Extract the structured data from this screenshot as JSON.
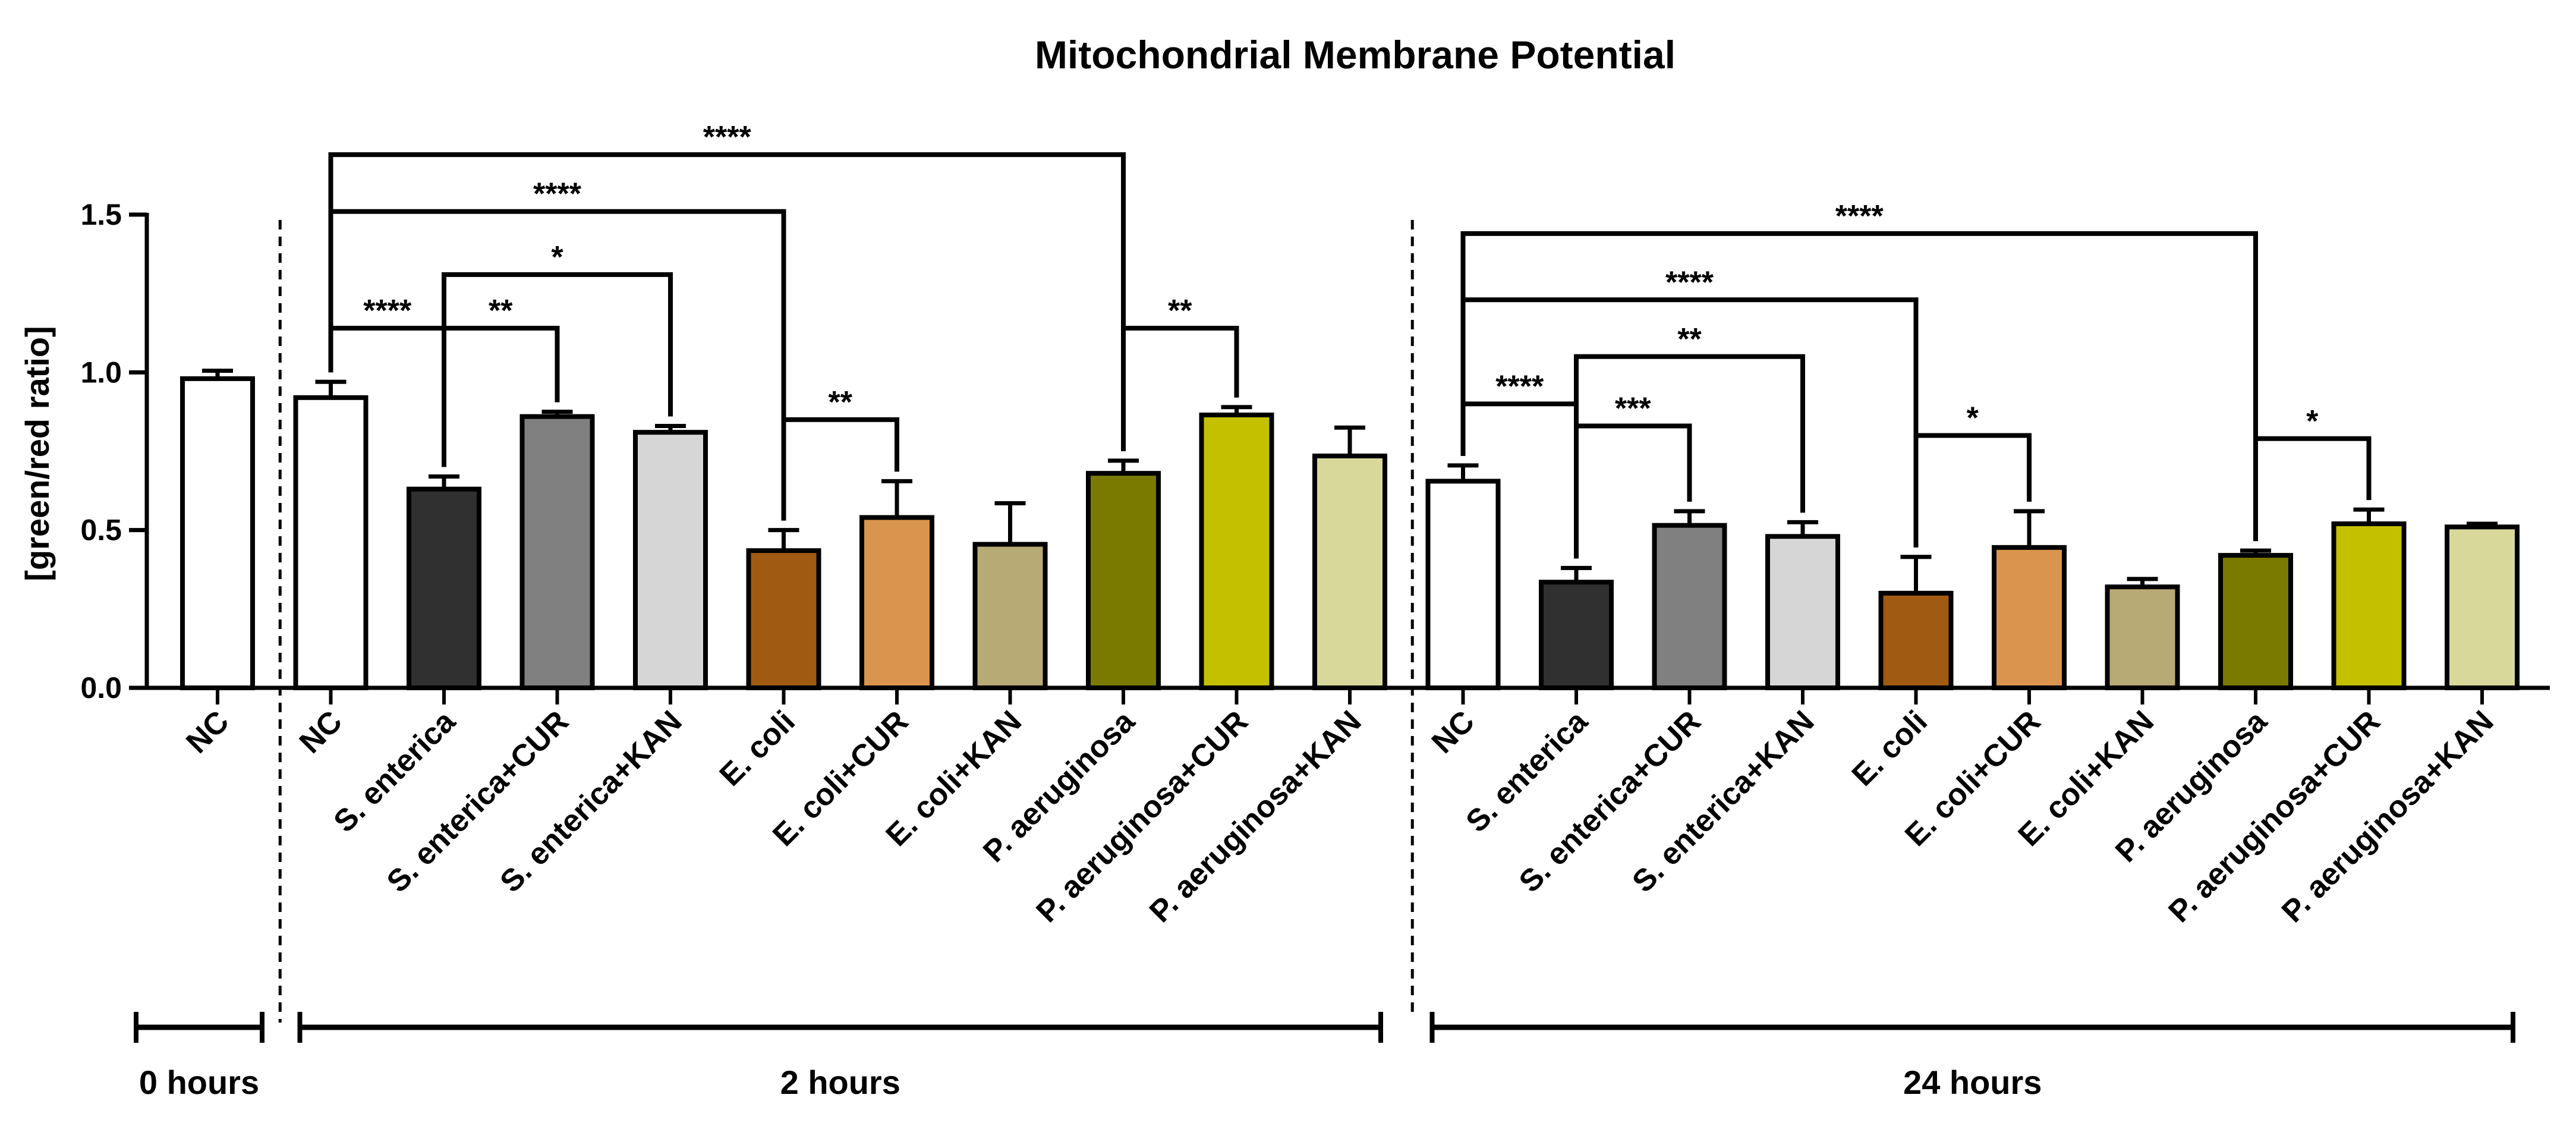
{
  "chart_data": {
    "type": "bar",
    "title": "Mitochondrial  Membrane Potential",
    "xlabel": "",
    "ylabel": "[green/red ratio]",
    "ylim": [
      0,
      1.5
    ],
    "yticks": [
      "0.0",
      "0.5",
      "1.0",
      "1.5"
    ],
    "grid": false,
    "legend": "none",
    "groups": [
      {
        "label": "0 hours",
        "first": 0,
        "last": 0
      },
      {
        "label": "2 hours",
        "first": 1,
        "last": 10
      },
      {
        "label": "24 hours",
        "first": 11,
        "last": 20
      }
    ],
    "bars": [
      {
        "label": "NC",
        "value": 0.98,
        "error": 0.025,
        "color": "#ffffff"
      },
      {
        "label": "NC",
        "value": 0.92,
        "error": 0.05,
        "color": "#ffffff"
      },
      {
        "label": "S. enterica",
        "value": 0.63,
        "error": 0.04,
        "color": "#303030"
      },
      {
        "label": "S. enterica+CUR",
        "value": 0.86,
        "error": 0.015,
        "color": "#808080"
      },
      {
        "label": "S. enterica+KAN",
        "value": 0.81,
        "error": 0.02,
        "color": "#d6d6d6"
      },
      {
        "label": "E. coli",
        "value": 0.435,
        "error": 0.065,
        "color": "#a05a12"
      },
      {
        "label": "E. coli+CUR",
        "value": 0.54,
        "error": 0.115,
        "color": "#d9954d"
      },
      {
        "label": "E. coli+KAN",
        "value": 0.455,
        "error": 0.13,
        "color": "#b8aa74"
      },
      {
        "label": "P. aeruginosa",
        "value": 0.68,
        "error": 0.04,
        "color": "#7a7a00"
      },
      {
        "label": "P. aeruginosa+CUR",
        "value": 0.865,
        "error": 0.025,
        "color": "#c4c000"
      },
      {
        "label": "P. aeruginosa+KAN",
        "value": 0.735,
        "error": 0.09,
        "color": "#d8d89a"
      },
      {
        "label": "NC",
        "value": 0.655,
        "error": 0.05,
        "color": "#ffffff"
      },
      {
        "label": "S. enterica",
        "value": 0.335,
        "error": 0.045,
        "color": "#303030"
      },
      {
        "label": "S. enterica+CUR",
        "value": 0.515,
        "error": 0.045,
        "color": "#808080"
      },
      {
        "label": "S. enterica+KAN",
        "value": 0.48,
        "error": 0.045,
        "color": "#d6d6d6"
      },
      {
        "label": "E. coli",
        "value": 0.3,
        "error": 0.115,
        "color": "#a05a12"
      },
      {
        "label": "E. coli+CUR",
        "value": 0.445,
        "error": 0.115,
        "color": "#d9954d"
      },
      {
        "label": "E. coli+KAN",
        "value": 0.32,
        "error": 0.025,
        "color": "#b8aa74"
      },
      {
        "label": "P. aeruginosa",
        "value": 0.42,
        "error": 0.015,
        "color": "#7a7a00"
      },
      {
        "label": "P. aeruginosa+CUR",
        "value": 0.52,
        "error": 0.045,
        "color": "#c4c000"
      },
      {
        "label": "P. aeruginosa+KAN",
        "value": 0.51,
        "error": 0.01,
        "color": "#d8d89a"
      }
    ],
    "annotations": [
      {
        "from": 1,
        "to": 8,
        "level": 1.69,
        "text": "****"
      },
      {
        "from": 1,
        "to": 5,
        "level": 1.51,
        "text": "****"
      },
      {
        "from": 1,
        "to": 2,
        "level": 1.14,
        "text": "****"
      },
      {
        "from": 2,
        "to": 4,
        "level": 1.31,
        "text": "*"
      },
      {
        "from": 2,
        "to": 3,
        "level": 1.14,
        "text": "**"
      },
      {
        "from": 5,
        "to": 6,
        "level": 0.85,
        "text": "**"
      },
      {
        "from": 8,
        "to": 9,
        "level": 1.14,
        "text": "**"
      },
      {
        "from": 11,
        "to": 18,
        "level": 1.44,
        "text": "****"
      },
      {
        "from": 11,
        "to": 15,
        "level": 1.23,
        "text": "****"
      },
      {
        "from": 11,
        "to": 12,
        "level": 0.9,
        "text": "****"
      },
      {
        "from": 12,
        "to": 14,
        "level": 1.05,
        "text": "**"
      },
      {
        "from": 12,
        "to": 13,
        "level": 0.83,
        "text": "***"
      },
      {
        "from": 15,
        "to": 16,
        "level": 0.8,
        "text": "*"
      },
      {
        "from": 18,
        "to": 19,
        "level": 0.79,
        "text": "*"
      }
    ]
  }
}
